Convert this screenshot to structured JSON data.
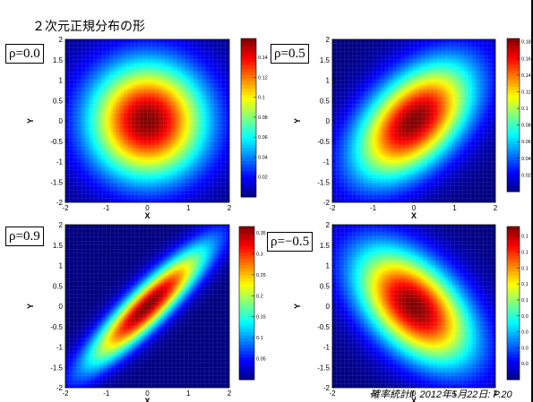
{
  "slide": {
    "title": "２次元正規分布の形",
    "footer": "確率統計Ⅱ, 2012年5月22日: P.20"
  },
  "colormap": "jet",
  "chart_data": [
    {
      "type": "heatmap",
      "title": "",
      "rho_label": "ρ=0.0",
      "rho": 0.0,
      "xlabel": "X",
      "ylabel": "Y",
      "xlim": [
        -2,
        2
      ],
      "ylim": [
        -2,
        2
      ],
      "xticks": [
        -2,
        -1,
        0,
        1,
        2
      ],
      "yticks": [
        -2,
        -1.5,
        -1,
        -0.5,
        0,
        0.5,
        1,
        1.5,
        2
      ],
      "colorbar_ticks": [
        0.02,
        0.04,
        0.06,
        0.08,
        0.1,
        0.12,
        0.14
      ],
      "colorbar_range": [
        0,
        0.159
      ]
    },
    {
      "type": "heatmap",
      "title": "",
      "rho_label": "ρ=0.5",
      "rho": 0.5,
      "xlabel": "X",
      "ylabel": "Y",
      "xlim": [
        -2,
        2
      ],
      "ylim": [
        -2,
        2
      ],
      "xticks": [
        -2,
        -1,
        0,
        1,
        2
      ],
      "yticks": [
        -2,
        -1.5,
        -1,
        -0.5,
        0,
        0.5,
        1,
        1.5,
        2
      ],
      "colorbar_ticks": [
        0.02,
        0.04,
        0.06,
        0.08,
        0.1,
        0.12,
        0.14,
        0.16,
        0.18
      ],
      "colorbar_range": [
        0,
        0.184
      ]
    },
    {
      "type": "heatmap",
      "title": "",
      "rho_label": "ρ=0.9",
      "rho": 0.9,
      "xlabel": "X",
      "ylabel": "Y",
      "xlim": [
        -2,
        2
      ],
      "ylim": [
        -2,
        2
      ],
      "xticks": [
        -2,
        -1,
        0,
        1,
        2
      ],
      "yticks": [
        -2,
        -1.5,
        -1,
        -0.5,
        0,
        0.5,
        1,
        1.5,
        2
      ],
      "colorbar_ticks": [
        0.05,
        0.1,
        0.15,
        0.2,
        0.25,
        0.3,
        0.35
      ],
      "colorbar_range": [
        0,
        0.365
      ]
    },
    {
      "type": "heatmap",
      "title": "",
      "rho_label": "ρ=−0.5",
      "rho": -0.5,
      "xlabel": "X",
      "ylabel": "Y",
      "xlim": [
        -2,
        2
      ],
      "ylim": [
        -2,
        2
      ],
      "xticks": [
        -2,
        -1,
        0,
        1,
        2
      ],
      "yticks": [
        -2,
        -1.5,
        -1,
        -0.5,
        0,
        0.5,
        1,
        1.5,
        2
      ],
      "colorbar_ticks": [
        "0.0",
        "0.0",
        "0.0",
        "0.0",
        "0.1",
        "0.1",
        "0.1",
        "0.1",
        "0.1"
      ],
      "colorbar_range": [
        0,
        0.184
      ]
    }
  ]
}
